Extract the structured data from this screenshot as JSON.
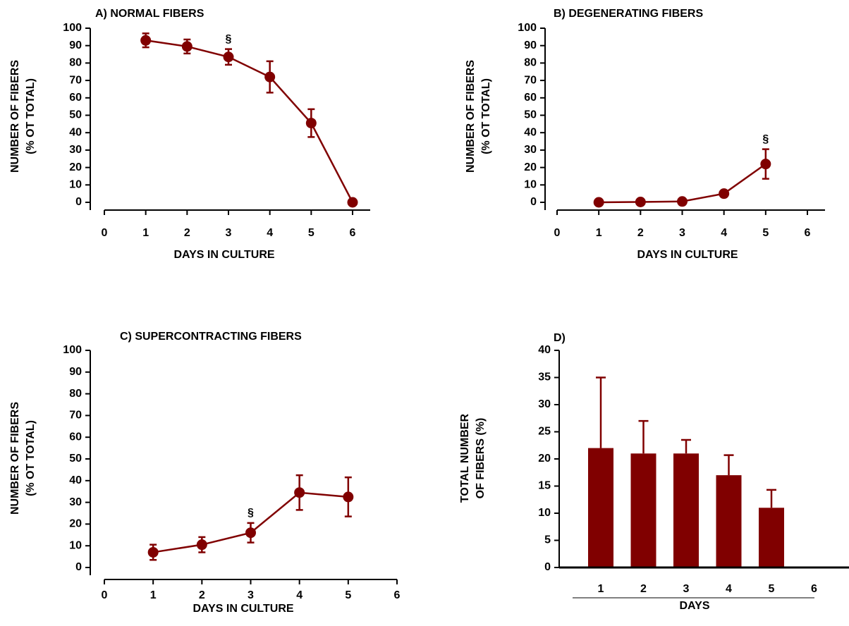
{
  "chart_data": [
    {
      "type": "line",
      "title": "A) NORMAL FIBERS",
      "xlabel": "DAYS IN CULTURE",
      "ylabel": [
        "NUMBER OF FIBERS",
        "(% OT TOTAL)"
      ],
      "x": [
        1,
        2,
        3,
        4,
        5,
        6
      ],
      "values": [
        93,
        89.5,
        83.5,
        72,
        45.5,
        0
      ],
      "errors": [
        4,
        4,
        4.5,
        9,
        8,
        0
      ],
      "color": "#800000",
      "xlim": [
        0,
        6
      ],
      "xticks": [
        0,
        1,
        2,
        3,
        4,
        5,
        6
      ],
      "ylim": [
        0,
        100
      ],
      "yticks": [
        0,
        10,
        20,
        30,
        40,
        50,
        60,
        70,
        80,
        90,
        100
      ],
      "annotations": [
        {
          "text": "§",
          "x": 3
        }
      ]
    },
    {
      "type": "line",
      "title": "B) DEGENERATING FIBERS",
      "xlabel": "DAYS IN CULTURE",
      "ylabel": [
        "NUMBER OF FIBERS",
        "(% OT TOTAL)"
      ],
      "x": [
        1,
        2,
        3,
        4,
        5
      ],
      "values": [
        0,
        0.2,
        0.5,
        5,
        22
      ],
      "errors": [
        0,
        0,
        0,
        1,
        8.5
      ],
      "color": "#800000",
      "xlim": [
        0,
        6
      ],
      "xticks": [
        0,
        1,
        2,
        3,
        4,
        5,
        6
      ],
      "ylim": [
        0,
        100
      ],
      "yticks": [
        0,
        10,
        20,
        30,
        40,
        50,
        60,
        70,
        80,
        90,
        100
      ],
      "annotations": [
        {
          "text": "§",
          "x": 5
        }
      ]
    },
    {
      "type": "line",
      "title": "C) SUPERCONTRACTING FIBERS",
      "xlabel": "DAYS IN CULTURE",
      "ylabel": [
        "NUMBER OF FIBERS",
        "(% OT TOTAL)"
      ],
      "x": [
        1,
        2,
        3,
        4,
        5
      ],
      "values": [
        7,
        10.5,
        16,
        34.5,
        32.5
      ],
      "errors": [
        3.5,
        3.5,
        4.5,
        8,
        9
      ],
      "color": "#800000",
      "xlim": [
        0,
        6
      ],
      "xticks": [
        0,
        1,
        2,
        3,
        4,
        5,
        6
      ],
      "ylim": [
        0,
        100
      ],
      "yticks": [
        0,
        10,
        20,
        30,
        40,
        50,
        60,
        70,
        80,
        90,
        100
      ],
      "annotations": [
        {
          "text": "§",
          "x": 3
        }
      ]
    },
    {
      "type": "bar",
      "title": "D)",
      "xlabel": "DAYS",
      "ylabel": [
        "TOTAL NUMBER",
        "OF FIBERS (%)"
      ],
      "categories": [
        "1",
        "2",
        "3",
        "4",
        "5",
        "6"
      ],
      "values": [
        22,
        21,
        21,
        17,
        11,
        null
      ],
      "errors": [
        13,
        6,
        2.5,
        3.7,
        3.3,
        null
      ],
      "color": "#800000",
      "ylim": [
        0,
        40
      ],
      "yticks": [
        0,
        5,
        10,
        15,
        20,
        25,
        30,
        35,
        40
      ]
    }
  ]
}
